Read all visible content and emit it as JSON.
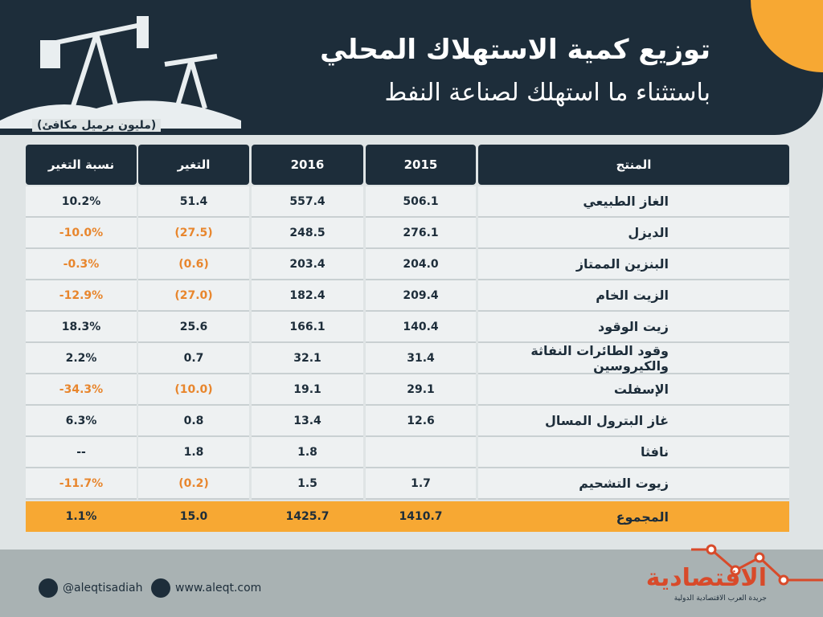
{
  "header": {
    "title": "توزيع كمية الاستهلاك المحلي",
    "subtitle": "باستثناء ما استهلك لصناعة النفط",
    "unit": "(مليون برميل مكافئ)"
  },
  "table": {
    "columns": [
      "المنتج",
      "2015",
      "2016",
      "التغير",
      "نسبة التغير"
    ],
    "rows": [
      [
        "الغاز الطبيعي",
        "506.1",
        "557.4",
        "51.4",
        "10.2%"
      ],
      [
        "الديزل",
        "276.1",
        "248.5",
        "(27.5)",
        "-10.0%"
      ],
      [
        "البنزين الممتاز",
        "204.0",
        "203.4",
        "(0.6)",
        "-0.3%"
      ],
      [
        "الزيت الخام",
        "209.4",
        "182.4",
        "(27.0)",
        "-12.9%"
      ],
      [
        "زيت الوقود",
        "140.4",
        "166.1",
        "25.6",
        "18.3%"
      ],
      [
        "وقود الطائرات النفاثة والكيروسين",
        "31.4",
        "32.1",
        "0.7",
        "2.2%"
      ],
      [
        "الإسفلت",
        "29.1",
        "19.1",
        "(10.0)",
        "-34.3%"
      ],
      [
        "غاز البترول المسال",
        "12.6",
        "13.4",
        "0.8",
        "6.3%"
      ],
      [
        "نافثا",
        null,
        "1.8",
        "1.8",
        "--"
      ],
      [
        "زيوت التشحيم",
        "1.7",
        "1.5",
        "(0.2)",
        "-11.7%"
      ]
    ],
    "total": [
      "المجموع",
      "1410.7",
      "1425.7",
      "15.0",
      "1.1%"
    ]
  },
  "footer": {
    "twitter": "@aleqtisadiah",
    "website": "www.aleqt.com",
    "logo": "الاقتصادية",
    "logo_subtitle": "جريدة العرب الاقتصادية الدولية"
  }
}
